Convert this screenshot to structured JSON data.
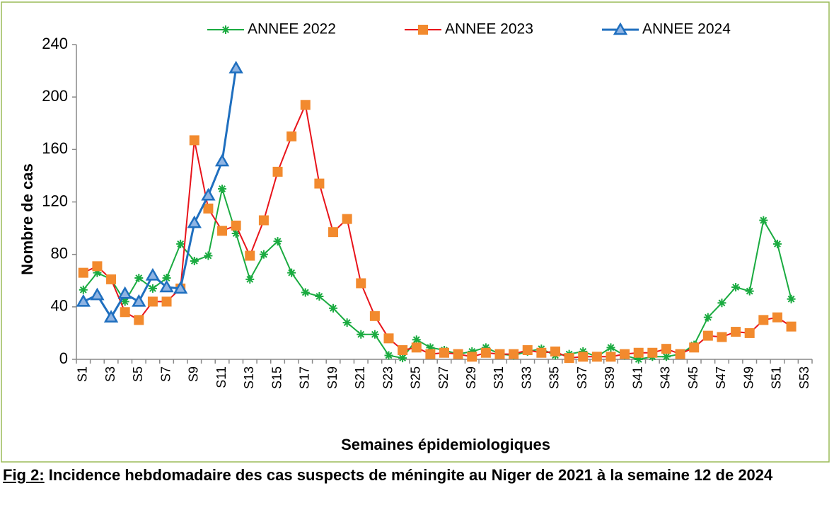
{
  "chart_data": {
    "type": "line",
    "legend": "top",
    "grid": false,
    "y_label": "Nombre de cas",
    "x_label": "Semaines épidemiologiques",
    "caption_label": "Fig 2:",
    "caption": "Incidence hebdomadaire des cas suspects de méningite au Niger de 2021 à la semaine 12 de 2024",
    "categories": [
      "S1",
      null,
      "S3",
      null,
      "S5",
      null,
      "S7",
      null,
      "S9",
      null,
      "S11",
      null,
      "S13",
      null,
      "S15",
      null,
      "S17",
      null,
      "S19",
      null,
      "S21",
      null,
      "S23",
      null,
      "S25",
      null,
      "S27",
      null,
      "S29",
      null,
      "S31",
      null,
      "S33",
      null,
      "S35",
      null,
      "S37",
      null,
      "S39",
      null,
      "S41",
      null,
      "S43",
      null,
      "S45",
      null,
      "S47",
      null,
      "S49",
      null,
      "S51",
      null,
      "S53"
    ],
    "ylim": [
      0,
      240
    ],
    "yticks": [
      0,
      40,
      80,
      120,
      160,
      200,
      240
    ],
    "series": [
      {
        "name": "ANNEE 2022",
        "color": "#1aab40",
        "marker": "star",
        "values": [
          53,
          66,
          61,
          44,
          62,
          54,
          62,
          88,
          75,
          79,
          130,
          96,
          61,
          80,
          90,
          66,
          51,
          48,
          39,
          28,
          19,
          19,
          3,
          1,
          15,
          9,
          7,
          4,
          6,
          9,
          4,
          3,
          6,
          8,
          3,
          4,
          6,
          2,
          9,
          3,
          0,
          2,
          2,
          4,
          11,
          32,
          43,
          55,
          52,
          106,
          88,
          46,
          null
        ]
      },
      {
        "name": "ANNEE 2023",
        "color": "#e8141b",
        "marker_color": "#f28a2e",
        "marker": "square",
        "values": [
          66,
          71,
          61,
          36,
          30,
          44,
          44,
          54,
          167,
          115,
          98,
          102,
          79,
          106,
          143,
          170,
          194,
          134,
          97,
          107,
          58,
          33,
          16,
          7,
          9,
          4,
          5,
          4,
          2,
          5,
          4,
          4,
          7,
          5,
          6,
          1,
          2,
          2,
          2,
          4,
          5,
          5,
          8,
          4,
          9,
          18,
          17,
          21,
          20,
          30,
          32,
          25,
          null
        ]
      },
      {
        "name": "ANNEE 2024",
        "color": "#1f6fbf",
        "marker_color": "#8fb4e3",
        "marker": "triangle",
        "values": [
          44,
          49,
          32,
          50,
          44,
          64,
          55,
          54,
          104,
          125,
          151,
          222,
          null,
          null,
          null,
          null,
          null,
          null,
          null,
          null,
          null,
          null,
          null,
          null,
          null,
          null,
          null,
          null,
          null,
          null,
          null,
          null,
          null,
          null,
          null,
          null,
          null,
          null,
          null,
          null,
          null,
          null,
          null,
          null,
          null,
          null,
          null,
          null,
          null,
          null,
          null,
          null,
          null
        ]
      }
    ]
  }
}
